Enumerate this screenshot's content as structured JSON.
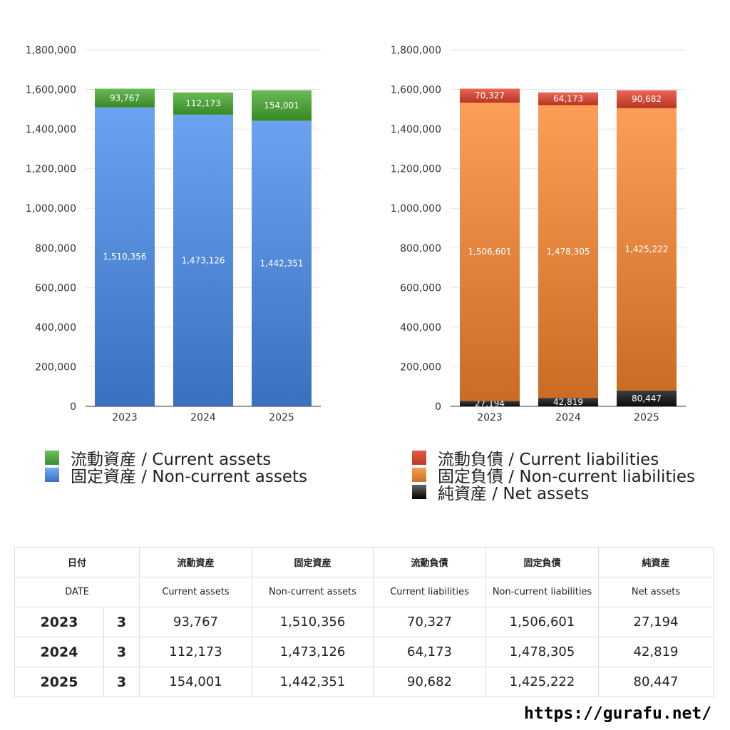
{
  "colors": {
    "green": "#4e9e3c",
    "blue": "#4f86d6",
    "red": "#cf4a38",
    "orange": "#e0823a",
    "black": "#222222",
    "grid": "#e6e6e6"
  },
  "chart_data": [
    {
      "type": "bar",
      "stacked": true,
      "categories": [
        "2023",
        "2024",
        "2025"
      ],
      "ylim": [
        0,
        1800000
      ],
      "yticks": [
        "0",
        "200,000",
        "400,000",
        "600,000",
        "800,000",
        "1,000,000",
        "1,200,000",
        "1,400,000",
        "1,600,000",
        "1,800,000"
      ],
      "series": [
        {
          "name": "固定資産 / Non-current assets",
          "color": "#4f86d6",
          "values": [
            1510356,
            1473126,
            1442351
          ],
          "labels": [
            "1,510,356",
            "1,473,126",
            "1,442,351"
          ]
        },
        {
          "name": "流動資産 / Current assets",
          "color": "#4e9e3c",
          "values": [
            93767,
            112173,
            154001
          ],
          "labels": [
            "93,767",
            "112,173",
            "154,001"
          ]
        }
      ],
      "legend": "bottom"
    },
    {
      "type": "bar",
      "stacked": true,
      "categories": [
        "2023",
        "2024",
        "2025"
      ],
      "ylim": [
        0,
        1800000
      ],
      "yticks": [
        "0",
        "200,000",
        "400,000",
        "600,000",
        "800,000",
        "1,000,000",
        "1,200,000",
        "1,400,000",
        "1,600,000",
        "1,800,000"
      ],
      "series": [
        {
          "name": "純資産 / Net assets",
          "color": "#222222",
          "values": [
            27194,
            42819,
            80447
          ],
          "labels": [
            "27,194",
            "42,819",
            "80,447"
          ]
        },
        {
          "name": "固定負債 / Non-current liabilities",
          "color": "#e0823a",
          "values": [
            1506601,
            1478305,
            1425222
          ],
          "labels": [
            "1,506,601",
            "1,478,305",
            "1,425,222"
          ]
        },
        {
          "name": "流動負債 / Current liabilities",
          "color": "#cf4a38",
          "values": [
            70327,
            64173,
            90682
          ],
          "labels": [
            "70,327",
            "64,173",
            "90,682"
          ]
        }
      ],
      "legend": "bottom"
    }
  ],
  "legend_left": [
    {
      "label": "流動資産 / Current assets",
      "color": "#4e9e3c"
    },
    {
      "label": "固定資産 / Non-current assets",
      "color": "#4f86d6"
    }
  ],
  "legend_right": [
    {
      "label": "流動負債 / Current liabilities",
      "color": "#cf4a38"
    },
    {
      "label": "固定負債 / Non-current liabilities",
      "color": "#e0823a"
    },
    {
      "label": "純資産 / Net assets",
      "color": "#222222"
    }
  ],
  "table": {
    "header_jp": {
      "date": "日付",
      "ca": "流動資産",
      "nca": "固定資産",
      "cl": "流動負債",
      "ncl": "固定負債",
      "na": "純資産"
    },
    "header_en": {
      "date": "DATE",
      "ca": "Current assets",
      "nca": "Non-current assets",
      "cl": "Current liabilities",
      "ncl": "Non-current liabilities",
      "na": "Net assets"
    },
    "rows": [
      {
        "year": "2023",
        "month": "3",
        "ca": "93,767",
        "nca": "1,510,356",
        "cl": "70,327",
        "ncl": "1,506,601",
        "na": "27,194"
      },
      {
        "year": "2024",
        "month": "3",
        "ca": "112,173",
        "nca": "1,473,126",
        "cl": "64,173",
        "ncl": "1,478,305",
        "na": "42,819"
      },
      {
        "year": "2025",
        "month": "3",
        "ca": "154,001",
        "nca": "1,442,351",
        "cl": "90,682",
        "ncl": "1,425,222",
        "na": "80,447"
      }
    ]
  },
  "footer": {
    "url": "https://gurafu.net/"
  }
}
